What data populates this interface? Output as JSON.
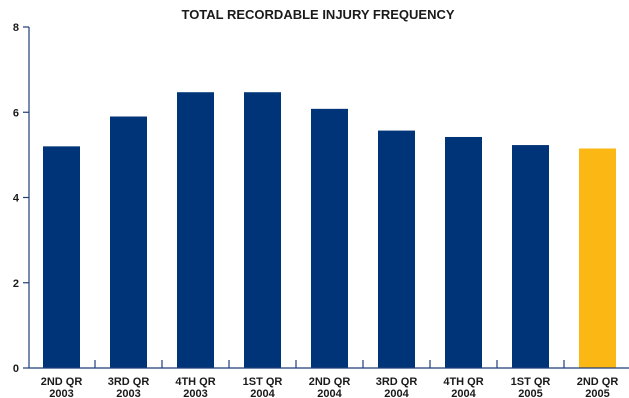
{
  "chart_data": {
    "type": "bar",
    "title": "TOTAL RECORDABLE INJURY FREQUENCY",
    "xlabel": "",
    "ylabel": "",
    "ylim": [
      0,
      8
    ],
    "yticks": [
      "0",
      "2",
      "4",
      "6",
      "8"
    ],
    "categories": [
      [
        "2ND QR",
        "2003"
      ],
      [
        "3RD QR",
        "2003"
      ],
      [
        "4TH QR",
        "2003"
      ],
      [
        "1ST QR",
        "2004"
      ],
      [
        "2ND QR",
        "2004"
      ],
      [
        "3RD QR",
        "2004"
      ],
      [
        "4TH QR",
        "2004"
      ],
      [
        "1ST QR",
        "2005"
      ],
      [
        "2ND QR",
        "2005"
      ]
    ],
    "values": [
      5.2,
      5.9,
      6.47,
      6.47,
      6.08,
      5.57,
      5.42,
      5.23,
      5.15
    ],
    "colors": [
      "#003478",
      "#003478",
      "#003478",
      "#003478",
      "#003478",
      "#003478",
      "#003478",
      "#003478",
      "#fbb714"
    ],
    "grid": false,
    "legend": "none"
  }
}
